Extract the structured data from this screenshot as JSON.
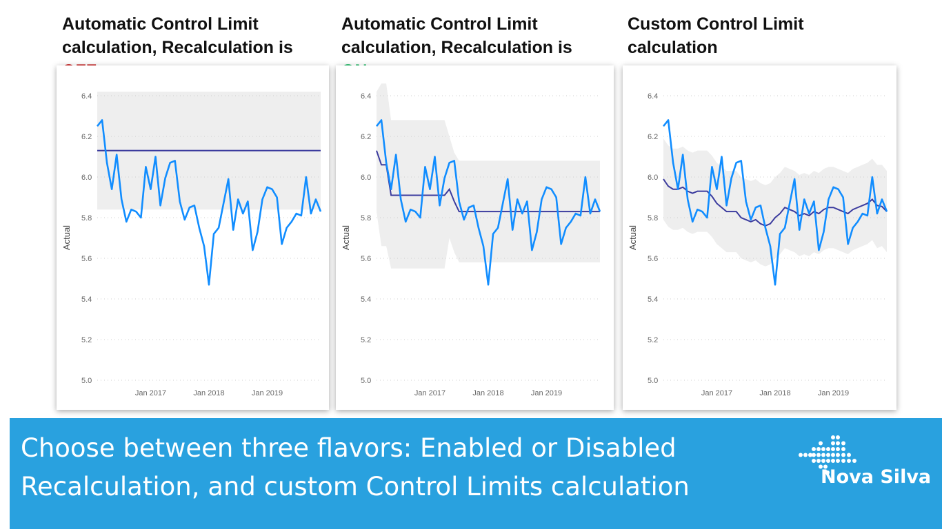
{
  "titles": [
    {
      "line1": "Automatic Control Limit",
      "line2": "calculation, Recalculation is",
      "flag": "OFF",
      "flag_color": "#c00000"
    },
    {
      "line1": "Automatic Control Limit",
      "line2": "calculation, Recalculation is",
      "flag": "ON",
      "flag_color": "#00b050"
    },
    {
      "line1": "Custom Control Limit",
      "line2": "calculation",
      "flag": "",
      "flag_color": "#111111"
    }
  ],
  "banner": {
    "line1": "Choose between three flavors: Enabled or Disabled",
    "line2": "Recalculation, and custom Control Limits calculation",
    "logo_text": "Nova Silva",
    "color": "#29a1df"
  },
  "colors": {
    "actual": "#118dff",
    "center": "#3b3b9e",
    "band": "#eeeeee"
  },
  "chart_data": [
    {
      "type": "line",
      "title": "Automatic Control Limit calculation, Recalculation is OFF",
      "ylabel": "Actual",
      "xlabel": "",
      "ylim": [
        5.0,
        6.4
      ],
      "yticks": [
        "6.4",
        "6.2",
        "6.0",
        "5.8",
        "5.6",
        "5.4",
        "5.2",
        "5.0"
      ],
      "xticks": [
        {
          "label": "Jan 2017",
          "index": 11
        },
        {
          "label": "Jan 2018",
          "index": 23
        },
        {
          "label": "Jan 2019",
          "index": 35
        }
      ],
      "grid": true,
      "actual": [
        6.25,
        6.28,
        6.07,
        5.94,
        6.11,
        5.89,
        5.78,
        5.84,
        5.83,
        5.8,
        6.05,
        5.94,
        6.1,
        5.86,
        5.995,
        6.07,
        6.08,
        5.88,
        5.79,
        5.85,
        5.86,
        5.75,
        5.66,
        5.47,
        5.72,
        5.75,
        5.87,
        5.99,
        5.74,
        5.89,
        5.82,
        5.88,
        5.64,
        5.73,
        5.89,
        5.95,
        5.94,
        5.9,
        5.67,
        5.75,
        5.78,
        5.82,
        5.81,
        6.0,
        5.82,
        5.89,
        5.83
      ],
      "center": 6.13,
      "upper": 6.42,
      "lower": 5.84
    },
    {
      "type": "line",
      "title": "Automatic Control Limit calculation, Recalculation is ON",
      "ylabel": "Actual",
      "xlabel": "",
      "ylim": [
        5.0,
        6.4
      ],
      "yticks": [
        "6.4",
        "6.2",
        "6.0",
        "5.8",
        "5.6",
        "5.4",
        "5.2",
        "5.0"
      ],
      "xticks": [
        {
          "label": "Jan 2017",
          "index": 11
        },
        {
          "label": "Jan 2018",
          "index": 23
        },
        {
          "label": "Jan 2019",
          "index": 35
        }
      ],
      "grid": true,
      "actual": [
        6.25,
        6.28,
        6.07,
        5.94,
        6.11,
        5.89,
        5.78,
        5.84,
        5.83,
        5.8,
        6.05,
        5.94,
        6.1,
        5.86,
        5.995,
        6.07,
        6.08,
        5.88,
        5.79,
        5.85,
        5.86,
        5.75,
        5.66,
        5.47,
        5.72,
        5.75,
        5.87,
        5.99,
        5.74,
        5.89,
        5.82,
        5.88,
        5.64,
        5.73,
        5.89,
        5.95,
        5.94,
        5.9,
        5.67,
        5.75,
        5.78,
        5.82,
        5.81,
        6.0,
        5.82,
        5.89,
        5.83
      ],
      "center": [
        6.13,
        6.06,
        6.06,
        5.91,
        5.91,
        5.91,
        5.91,
        5.91,
        5.91,
        5.91,
        5.91,
        5.91,
        5.91,
        5.91,
        5.91,
        5.94,
        5.88,
        5.83,
        5.83,
        5.83,
        5.83,
        5.83,
        5.83,
        5.83,
        5.83,
        5.83,
        5.83,
        5.83,
        5.83,
        5.83,
        5.83,
        5.83,
        5.83,
        5.83,
        5.83,
        5.83,
        5.83,
        5.83,
        5.83,
        5.83,
        5.83,
        5.83,
        5.83,
        5.83,
        5.83,
        5.83,
        5.83
      ],
      "upper": [
        6.42,
        6.46,
        6.46,
        6.28,
        6.28,
        6.28,
        6.28,
        6.28,
        6.28,
        6.28,
        6.28,
        6.28,
        6.28,
        6.28,
        6.28,
        6.2,
        6.12,
        6.08,
        6.08,
        6.08,
        6.08,
        6.08,
        6.08,
        6.08,
        6.08,
        6.08,
        6.08,
        6.08,
        6.08,
        6.08,
        6.08,
        6.08,
        6.08,
        6.08,
        6.08,
        6.08,
        6.08,
        6.08,
        6.08,
        6.08,
        6.08,
        6.08,
        6.08,
        6.08,
        6.08,
        6.08,
        6.08
      ],
      "lower": [
        5.83,
        5.66,
        5.66,
        5.55,
        5.55,
        5.55,
        5.55,
        5.55,
        5.55,
        5.55,
        5.55,
        5.55,
        5.55,
        5.55,
        5.55,
        5.7,
        5.63,
        5.58,
        5.58,
        5.58,
        5.58,
        5.58,
        5.58,
        5.58,
        5.58,
        5.58,
        5.58,
        5.58,
        5.58,
        5.58,
        5.58,
        5.58,
        5.58,
        5.58,
        5.58,
        5.58,
        5.58,
        5.58,
        5.58,
        5.58,
        5.58,
        5.58,
        5.58,
        5.58,
        5.58,
        5.58,
        5.58
      ]
    },
    {
      "type": "line",
      "title": "Custom Control Limit calculation",
      "ylabel": "Actual",
      "xlabel": "",
      "ylim": [
        5.0,
        6.4
      ],
      "yticks": [
        "6.4",
        "6.2",
        "6.0",
        "5.8",
        "5.6",
        "5.4",
        "5.2",
        "5.0"
      ],
      "xticks": [
        {
          "label": "Jan 2017",
          "index": 11
        },
        {
          "label": "Jan 2018",
          "index": 23
        },
        {
          "label": "Jan 2019",
          "index": 35
        }
      ],
      "grid": true,
      "actual": [
        6.25,
        6.28,
        6.07,
        5.94,
        6.11,
        5.89,
        5.78,
        5.84,
        5.83,
        5.8,
        6.05,
        5.94,
        6.1,
        5.86,
        5.995,
        6.07,
        6.08,
        5.88,
        5.79,
        5.85,
        5.86,
        5.75,
        5.66,
        5.47,
        5.72,
        5.75,
        5.87,
        5.99,
        5.74,
        5.89,
        5.82,
        5.88,
        5.64,
        5.73,
        5.89,
        5.95,
        5.94,
        5.9,
        5.67,
        5.75,
        5.78,
        5.82,
        5.81,
        6.0,
        5.82,
        5.89,
        5.83
      ],
      "center": [
        5.99,
        5.955,
        5.94,
        5.94,
        5.95,
        5.93,
        5.92,
        5.93,
        5.93,
        5.93,
        5.905,
        5.87,
        5.85,
        5.83,
        5.83,
        5.83,
        5.8,
        5.79,
        5.78,
        5.79,
        5.77,
        5.76,
        5.77,
        5.8,
        5.82,
        5.85,
        5.84,
        5.83,
        5.81,
        5.82,
        5.81,
        5.83,
        5.82,
        5.84,
        5.85,
        5.85,
        5.84,
        5.83,
        5.82,
        5.84,
        5.85,
        5.86,
        5.87,
        5.89,
        5.86,
        5.855,
        5.83
      ],
      "upper": [
        6.19,
        6.155,
        6.14,
        6.14,
        6.15,
        6.13,
        6.12,
        6.13,
        6.13,
        6.13,
        6.105,
        6.07,
        6.05,
        6.03,
        6.03,
        6.03,
        6.0,
        5.99,
        5.98,
        5.99,
        5.97,
        5.96,
        5.97,
        6.0,
        6.02,
        6.05,
        6.04,
        6.03,
        6.01,
        6.02,
        6.01,
        6.03,
        6.02,
        6.04,
        6.05,
        6.05,
        6.04,
        6.03,
        6.02,
        6.04,
        6.05,
        6.06,
        6.07,
        6.09,
        6.06,
        6.06,
        6.03
      ],
      "lower": [
        5.79,
        5.755,
        5.74,
        5.74,
        5.75,
        5.73,
        5.72,
        5.73,
        5.73,
        5.73,
        5.705,
        5.67,
        5.65,
        5.63,
        5.63,
        5.63,
        5.6,
        5.59,
        5.58,
        5.59,
        5.57,
        5.56,
        5.57,
        5.6,
        5.62,
        5.65,
        5.64,
        5.63,
        5.61,
        5.62,
        5.61,
        5.63,
        5.62,
        5.64,
        5.65,
        5.65,
        5.64,
        5.63,
        5.62,
        5.64,
        5.65,
        5.66,
        5.67,
        5.69,
        5.65,
        5.66,
        5.63
      ]
    }
  ]
}
